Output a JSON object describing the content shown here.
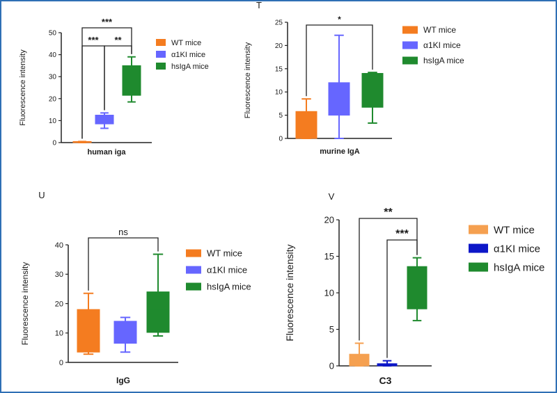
{
  "colors": {
    "wt": "#f47c20",
    "a1ki": "#6666ff",
    "hsiga": "#1f8a2e",
    "wt_c3": "#f5a050",
    "a1ki_c3": "#0d17c8",
    "hsiga_c3": "#1f8a2e",
    "frame": "#2f6fb5"
  },
  "panel_letters": {
    "t": "T",
    "u": "U",
    "v": "V"
  },
  "chart_data": [
    {
      "type": "box",
      "title": "",
      "xlabel": "human iga",
      "ylabel": "Fluorescence intensity",
      "ylim": [
        0,
        50
      ],
      "yticks": [
        0,
        10,
        20,
        30,
        40,
        50
      ],
      "legend_position": "right",
      "series": [
        {
          "name": "WT mice",
          "min": 0,
          "q1": 0,
          "median": 0.3,
          "q3": 0.5,
          "max": 0.5
        },
        {
          "name": "α1KI mice",
          "min": 6.5,
          "q1": 8.5,
          "median": 10,
          "q3": 12.5,
          "max": 13.5
        },
        {
          "name": "hsIgA mice",
          "min": 18.5,
          "q1": 21.5,
          "median": 30,
          "q3": 35,
          "max": 39
        }
      ],
      "significance": [
        {
          "pair": [
            0,
            2
          ],
          "label": "***"
        },
        {
          "pair": [
            0,
            1
          ],
          "label": "***"
        },
        {
          "pair": [
            1,
            2
          ],
          "label": "**"
        }
      ]
    },
    {
      "type": "box",
      "title": "",
      "xlabel": "murine IgA",
      "ylabel": "Fluorescence intensity",
      "ylim": [
        0,
        25
      ],
      "yticks": [
        0,
        5,
        10,
        15,
        20,
        25
      ],
      "legend_position": "right",
      "series": [
        {
          "name": "WT mice",
          "min": 0,
          "q1": 0,
          "median": 0.3,
          "q3": 5.8,
          "max": 8.5
        },
        {
          "name": "α1KI mice",
          "min": 0,
          "q1": 5,
          "median": 9,
          "q3": 12,
          "max": 22.2
        },
        {
          "name": "hsIgA mice",
          "min": 3.3,
          "q1": 6.7,
          "median": 10,
          "q3": 14,
          "max": 14.2
        }
      ],
      "significance": [
        {
          "pair": [
            0,
            2
          ],
          "label": "*"
        }
      ]
    },
    {
      "type": "box",
      "title": "",
      "xlabel": "IgG",
      "ylabel": "Fluorescence intensity",
      "ylim": [
        0,
        40
      ],
      "yticks": [
        0,
        10,
        20,
        30,
        40
      ],
      "legend_position": "right",
      "series": [
        {
          "name": "WT mice",
          "min": 2.8,
          "q1": 3.5,
          "median": 10,
          "q3": 18,
          "max": 23.5
        },
        {
          "name": "α1KI mice",
          "min": 3.5,
          "q1": 6.5,
          "median": 10,
          "q3": 14,
          "max": 15.3
        },
        {
          "name": "hsIgA mice",
          "min": 9,
          "q1": 10.2,
          "median": 18,
          "q3": 24,
          "max": 36.8
        }
      ],
      "significance": [
        {
          "pair": [
            0,
            2
          ],
          "label": "ns"
        }
      ]
    },
    {
      "type": "box",
      "title": "",
      "xlabel": "C3",
      "ylabel": "Fluorescence intensity",
      "ylim": [
        0,
        20
      ],
      "yticks": [
        0,
        5,
        10,
        15,
        20
      ],
      "legend_position": "right",
      "series": [
        {
          "name": "WT mice",
          "min": 0,
          "q1": 0,
          "median": 0.3,
          "q3": 1.6,
          "max": 3.1
        },
        {
          "name": "α1KI mice",
          "min": 0,
          "q1": 0,
          "median": 0.1,
          "q3": 0.3,
          "max": 0.7
        },
        {
          "name": "hsIgA mice",
          "min": 6.2,
          "q1": 7.8,
          "median": 10.5,
          "q3": 13.6,
          "max": 14.8
        }
      ],
      "significance": [
        {
          "pair": [
            0,
            2
          ],
          "label": "**"
        },
        {
          "pair": [
            1,
            2
          ],
          "label": "***"
        }
      ]
    }
  ]
}
